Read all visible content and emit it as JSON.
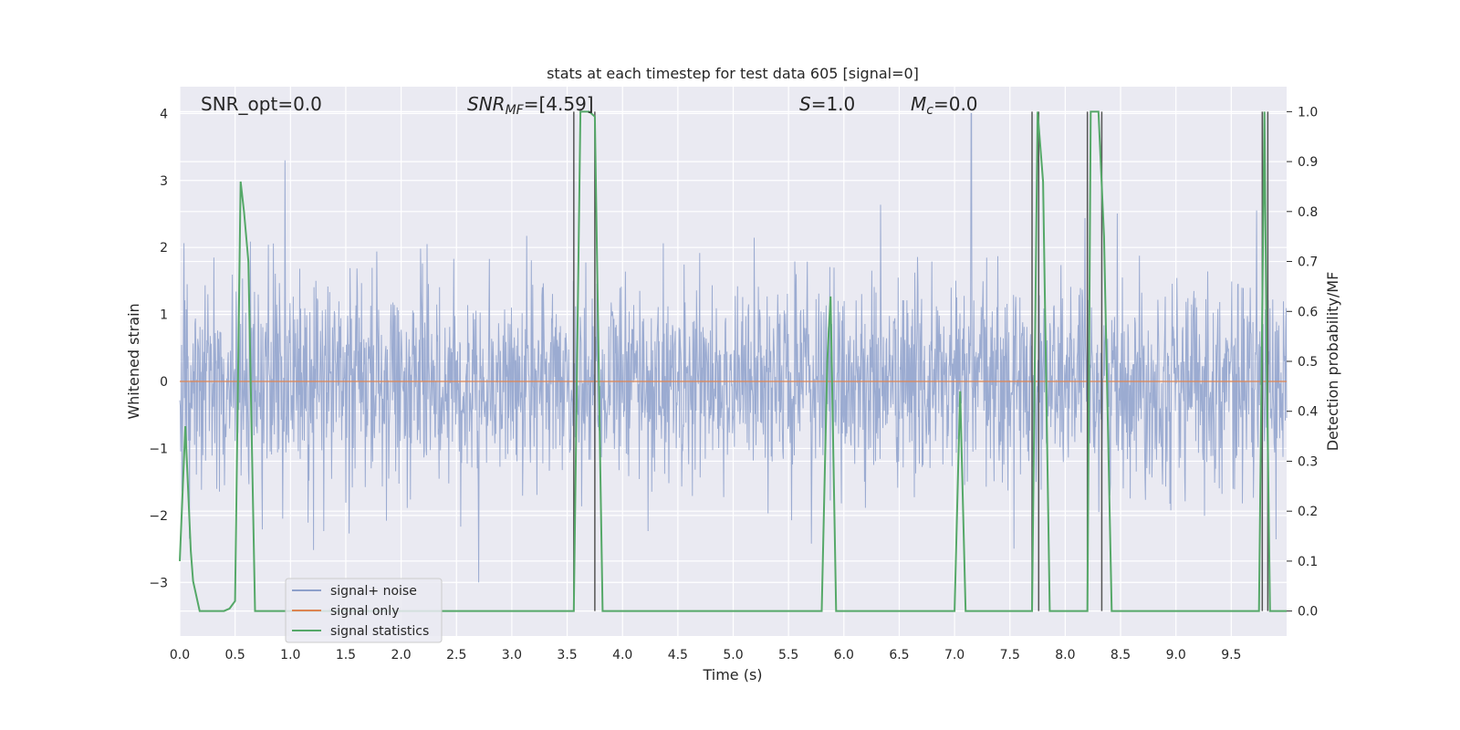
{
  "chart_data": {
    "type": "line",
    "title": "stats at each timestep for test data 605 [signal=0]",
    "xlabel": "Time (s)",
    "ylabel": "Whitened strain",
    "ylabel_right": "Detection probability/MF",
    "xlim": [
      0.0,
      10.0
    ],
    "ylim": [
      -3.8,
      4.4
    ],
    "ylim_right": [
      -0.05,
      1.05
    ],
    "x_ticks": [
      "0.0",
      "0.5",
      "1.0",
      "1.5",
      "2.0",
      "2.5",
      "3.0",
      "3.5",
      "4.0",
      "4.5",
      "5.0",
      "5.5",
      "6.0",
      "6.5",
      "7.0",
      "7.5",
      "8.0",
      "8.5",
      "9.0",
      "9.5"
    ],
    "y_ticks": [
      "4",
      "3",
      "2",
      "1",
      "0",
      "−1",
      "−2",
      "−3"
    ],
    "y_ticks_right": [
      "1.0",
      "0.9",
      "0.8",
      "0.7",
      "0.6",
      "0.5",
      "0.4",
      "0.3",
      "0.2",
      "0.1",
      "0.0"
    ],
    "grid": true,
    "legend": {
      "position": "lower-left",
      "entries": [
        "signal+ noise",
        "signal only",
        "signal statistics"
      ]
    },
    "annotations": {
      "snr_opt": "SNR_opt=0.0",
      "snr_mf_main": "SNR",
      "snr_mf_sub": "MF",
      "snr_mf_value": "=[4.59]",
      "s_symbol": "S",
      "s_value": "=1.0",
      "mc_symbol": "M",
      "mc_sub": "c",
      "mc_value": "=0.0"
    },
    "series": [
      {
        "name": "signal+ noise",
        "axis": "left",
        "kind": "noise",
        "color": "#8da0cb",
        "noise_std": 0.75,
        "noise_peaks": [
          [
            0.95,
            3.3
          ],
          [
            7.15,
            4.0
          ],
          [
            2.7,
            -3.0
          ]
        ]
      },
      {
        "name": "signal only",
        "axis": "left",
        "color": "#dd8452",
        "x": [
          0.0,
          10.0
        ],
        "y": [
          0.0,
          0.0
        ]
      },
      {
        "name": "signal statistics",
        "axis": "right",
        "color": "#55a868",
        "x": [
          0.0,
          0.05,
          0.1,
          0.12,
          0.18,
          0.25,
          0.4,
          0.45,
          0.5,
          0.55,
          0.58,
          0.62,
          0.68,
          1.0,
          3.5,
          3.56,
          3.62,
          3.7,
          3.75,
          3.8,
          3.82,
          5.8,
          5.85,
          5.88,
          5.93,
          7.0,
          7.05,
          7.1,
          7.7,
          7.75,
          7.8,
          7.86,
          8.2,
          8.23,
          8.3,
          8.35,
          8.42,
          9.75,
          9.8,
          9.82,
          9.85,
          10.0
        ],
        "y": [
          0.1,
          0.37,
          0.12,
          0.06,
          0.0,
          0.0,
          0.0,
          0.005,
          0.02,
          0.86,
          0.8,
          0.7,
          0.0,
          0.0,
          0.0,
          0.0,
          1.0,
          1.0,
          0.99,
          0.28,
          0.0,
          0.0,
          0.5,
          0.63,
          0.0,
          0.0,
          0.44,
          0.0,
          0.0,
          1.0,
          0.86,
          0.0,
          0.0,
          1.0,
          1.0,
          0.75,
          0.0,
          0.0,
          1.0,
          0.5,
          0.0,
          0.0
        ]
      }
    ],
    "markers": {
      "color": "#555555",
      "x": [
        3.56,
        3.75,
        7.7,
        7.76,
        8.2,
        8.33,
        9.78,
        9.83
      ]
    }
  }
}
